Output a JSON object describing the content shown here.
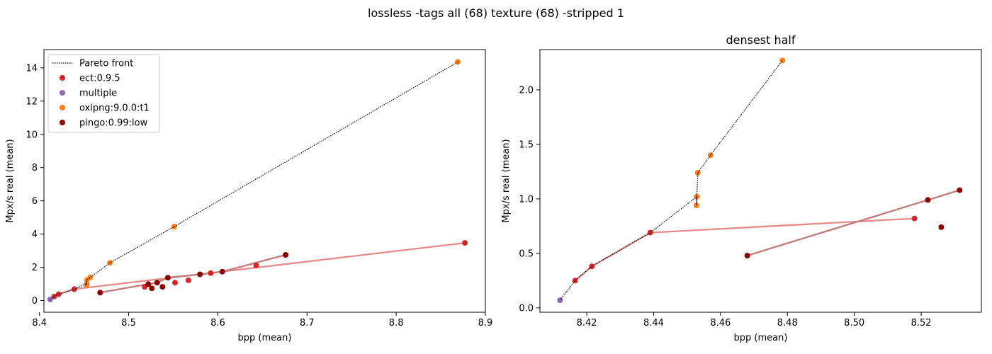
{
  "figure": {
    "suptitle": "lossless -tags all (68) texture (68) -stripped 1"
  },
  "legend": {
    "pareto_label": "Pareto front",
    "entries": [
      {
        "label": "ect:0.9.5",
        "color": "#d62728"
      },
      {
        "label": "multiple",
        "color": "#9467bd"
      },
      {
        "label": "oxipng:9.0.0:t1",
        "color": "#ff7f0e"
      },
      {
        "label": "pingo:0.99:low",
        "color": "#8b0000"
      }
    ]
  },
  "chart_data": [
    {
      "type": "scatter",
      "title": "",
      "xlabel": "bpp (mean)",
      "ylabel": "Mpx/s real (mean)",
      "xlim": [
        8.405,
        8.9
      ],
      "ylim": [
        -0.7,
        15.1
      ],
      "xticks": [
        "8.4",
        "8.5",
        "8.6",
        "8.7",
        "8.8",
        "8.9"
      ],
      "yticks": [
        "0",
        "2",
        "4",
        "6",
        "8",
        "10",
        "12",
        "14"
      ],
      "legend_location": "top-left",
      "series": [
        {
          "name": "ect:0.9.5",
          "color": "#d62728",
          "line_color": "#e6898b",
          "points": [
            [
              8.4165,
              0.25
            ],
            [
              8.4215,
              0.38
            ],
            [
              8.439,
              0.69
            ],
            [
              8.518,
              0.82
            ],
            [
              8.552,
              1.08
            ],
            [
              8.567,
              1.22
            ],
            [
              8.592,
              1.65
            ],
            [
              8.643,
              2.12
            ],
            [
              8.877,
              3.47
            ]
          ],
          "line": [
            [
              8.4165,
              0.25
            ],
            [
              8.4215,
              0.38
            ],
            [
              8.439,
              0.69
            ],
            [
              8.877,
              3.47
            ]
          ]
        },
        {
          "name": "multiple",
          "color": "#9467bd",
          "points": [
            [
              8.412,
              0.07
            ]
          ]
        },
        {
          "name": "oxipng:9.0.0:t1",
          "color": "#ff7f0e",
          "points": [
            [
              8.4528,
              0.94
            ],
            [
              8.4529,
              1.02
            ],
            [
              8.4532,
              1.24
            ],
            [
              8.457,
              1.4
            ],
            [
              8.479,
              2.27
            ],
            [
              8.551,
              4.45
            ],
            [
              8.869,
              14.35
            ]
          ]
        },
        {
          "name": "pingo:0.99:low",
          "color": "#8b0000",
          "line_color": "#c27a7a",
          "points": [
            [
              8.468,
              0.48
            ],
            [
              8.522,
              0.99
            ],
            [
              8.526,
              0.74
            ],
            [
              8.532,
              1.08
            ],
            [
              8.538,
              0.83
            ],
            [
              8.544,
              1.38
            ],
            [
              8.58,
              1.58
            ],
            [
              8.605,
              1.74
            ],
            [
              8.676,
              2.75
            ]
          ],
          "line": [
            [
              8.468,
              0.48
            ],
            [
              8.522,
              0.99
            ],
            [
              8.532,
              1.08
            ],
            [
              8.544,
              1.38
            ],
            [
              8.58,
              1.58
            ],
            [
              8.605,
              1.74
            ],
            [
              8.676,
              2.75
            ]
          ]
        }
      ],
      "pareto_front": [
        [
          8.412,
          0.07
        ],
        [
          8.4165,
          0.25
        ],
        [
          8.4215,
          0.38
        ],
        [
          8.439,
          0.69
        ],
        [
          8.4529,
          1.02
        ],
        [
          8.4528,
          0.94
        ],
        [
          8.4532,
          1.24
        ],
        [
          8.457,
          1.4
        ],
        [
          8.479,
          2.27
        ],
        [
          8.551,
          4.45
        ],
        [
          8.869,
          14.35
        ]
      ]
    },
    {
      "type": "scatter",
      "title": "densest half",
      "xlabel": "bpp (mean)",
      "ylabel": "Mpx/s real (mean)",
      "xlim": [
        8.406,
        8.538
      ],
      "ylim": [
        -0.04,
        2.37
      ],
      "xticks": [
        "8.42",
        "8.44",
        "8.46",
        "8.48",
        "8.50",
        "8.52"
      ],
      "yticks": [
        "0.0",
        "0.5",
        "1.0",
        "1.5",
        "2.0"
      ],
      "series": [
        {
          "name": "ect:0.9.5",
          "color": "#d62728",
          "line_color": "#e6898b",
          "points": [
            [
              8.4165,
              0.25
            ],
            [
              8.4215,
              0.38
            ],
            [
              8.439,
              0.69
            ],
            [
              8.518,
              0.82
            ]
          ],
          "line": [
            [
              8.4165,
              0.25
            ],
            [
              8.4215,
              0.38
            ],
            [
              8.439,
              0.69
            ],
            [
              8.518,
              0.82
            ]
          ]
        },
        {
          "name": "multiple",
          "color": "#9467bd",
          "points": [
            [
              8.412,
              0.07
            ]
          ]
        },
        {
          "name": "oxipng:9.0.0:t1",
          "color": "#ff7f0e",
          "points": [
            [
              8.4528,
              0.94
            ],
            [
              8.4529,
              1.02
            ],
            [
              8.4532,
              1.24
            ],
            [
              8.457,
              1.4
            ],
            [
              8.4785,
              2.27
            ]
          ]
        },
        {
          "name": "pingo:0.99:low",
          "color": "#8b0000",
          "line_color": "#c27a7a",
          "points": [
            [
              8.468,
              0.48
            ],
            [
              8.522,
              0.99
            ],
            [
              8.526,
              0.74
            ],
            [
              8.5315,
              1.08
            ]
          ],
          "line": [
            [
              8.468,
              0.48
            ],
            [
              8.522,
              0.99
            ],
            [
              8.5315,
              1.08
            ]
          ]
        }
      ],
      "pareto_front": [
        [
          8.412,
          0.07
        ],
        [
          8.4165,
          0.25
        ],
        [
          8.4215,
          0.38
        ],
        [
          8.439,
          0.69
        ],
        [
          8.4529,
          1.02
        ],
        [
          8.4528,
          0.94
        ],
        [
          8.4532,
          1.24
        ],
        [
          8.457,
          1.4
        ],
        [
          8.4785,
          2.27
        ]
      ]
    }
  ]
}
